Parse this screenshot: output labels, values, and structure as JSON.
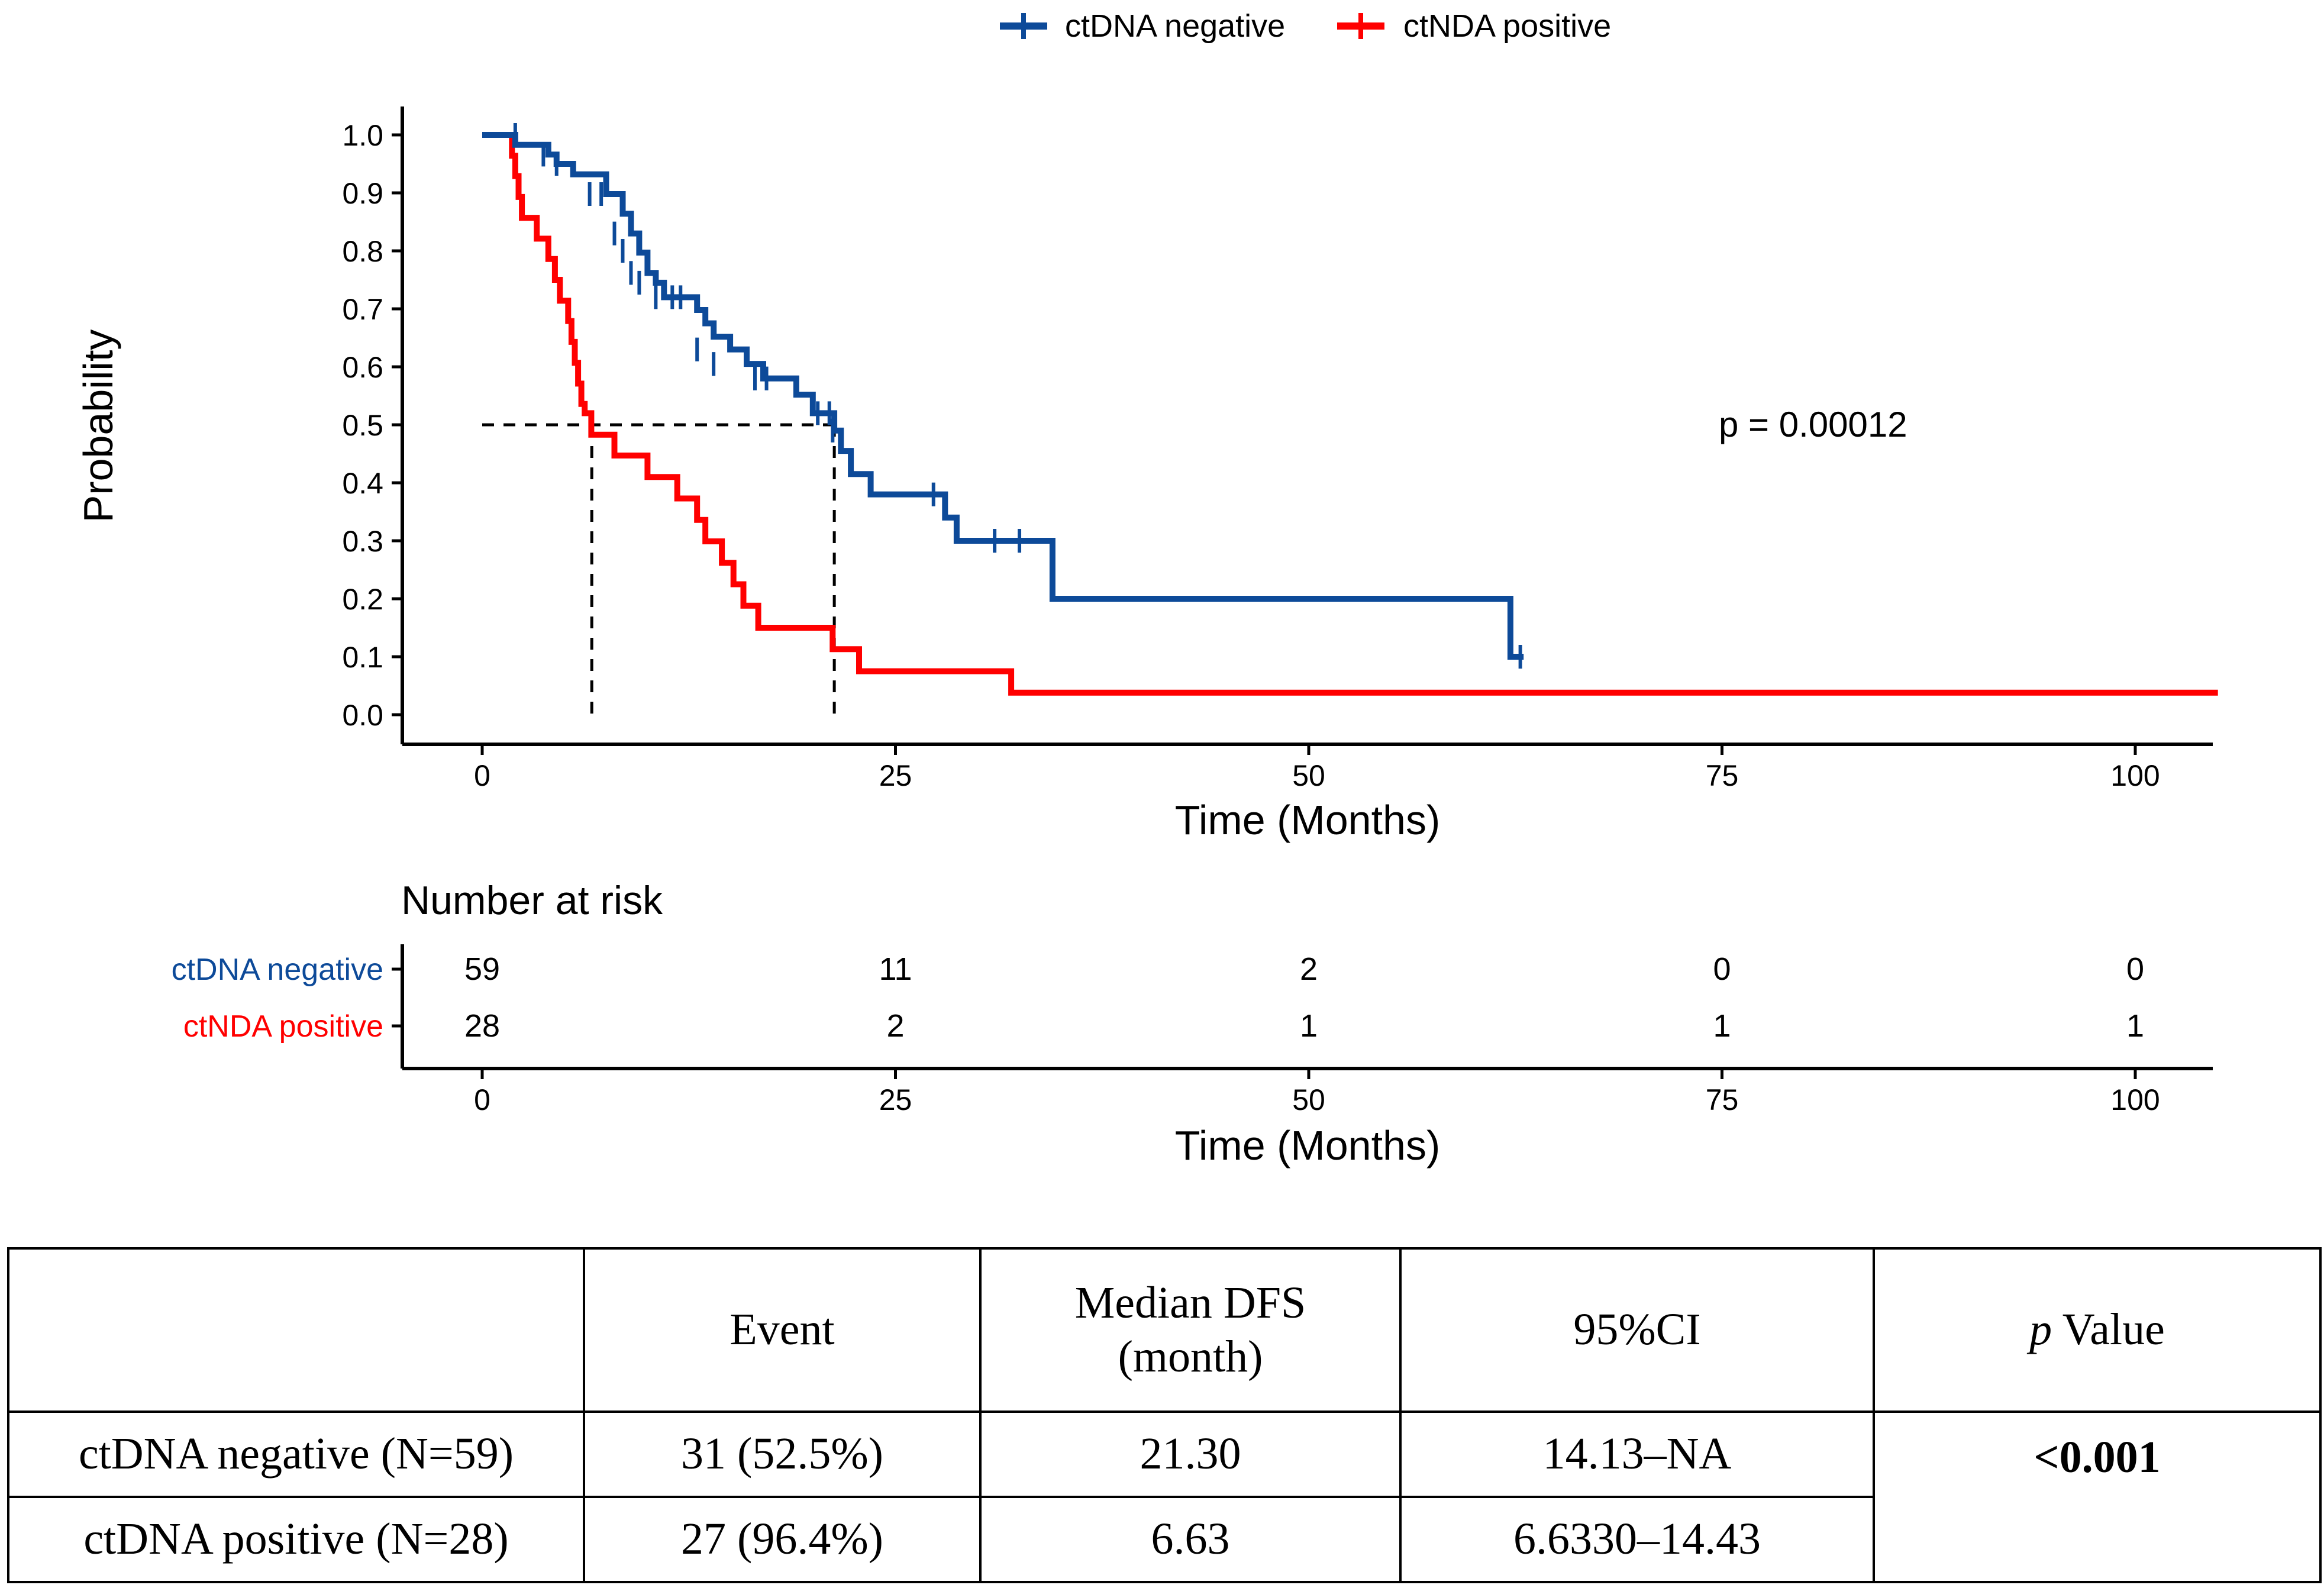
{
  "colors": {
    "negative": "#0d4a99",
    "positive": "#ff0000",
    "axis": "#000000",
    "median_line": "#000000"
  },
  "legend": {
    "items": [
      {
        "label": "ctDNA negative",
        "color": "#0d4a99"
      },
      {
        "label": "ctNDA positive",
        "color": "#ff0000"
      }
    ]
  },
  "chart_data": {
    "type": "line",
    "subtype": "kaplan-meier step",
    "xlabel": "Time (Months)",
    "ylabel": "Probability",
    "xlim": [
      -5,
      105
    ],
    "ylim": [
      0,
      1
    ],
    "xticks": [
      0,
      25,
      50,
      75,
      100
    ],
    "yticks": [
      0.0,
      0.1,
      0.2,
      0.3,
      0.4,
      0.5,
      0.6,
      0.7,
      0.8,
      0.9,
      1.0
    ],
    "xtick_labels": [
      "0",
      "25",
      "50",
      "75",
      "100"
    ],
    "ytick_labels": [
      "0.0",
      "0.1",
      "0.2",
      "0.3",
      "0.4",
      "0.5",
      "0.6",
      "0.7",
      "0.8",
      "0.9",
      "1.0"
    ],
    "annotation": "p = 0.00012",
    "medians": [
      6.63,
      21.3
    ],
    "series": [
      {
        "name": "ctDNA negative",
        "color": "#0d4a99",
        "steps": [
          [
            0,
            1.0
          ],
          [
            2,
            0.985
          ],
          [
            4,
            0.966
          ],
          [
            4.5,
            0.95
          ],
          [
            5,
            0.932
          ],
          [
            7,
            0.915
          ],
          [
            7.5,
            0.898
          ],
          [
            8.5,
            0.864
          ],
          [
            8.9,
            0.83
          ],
          [
            9.5,
            0.797
          ],
          [
            10,
            0.762
          ],
          [
            10.5,
            0.745
          ],
          [
            11,
            0.728
          ],
          [
            12,
            0.71
          ],
          [
            13,
            0.692
          ],
          [
            13.5,
            0.672
          ],
          [
            14,
            0.653
          ],
          [
            14.5,
            0.632
          ],
          [
            16,
            0.611
          ],
          [
            17,
            0.598
          ],
          [
            18,
            0.58
          ],
          [
            21,
            0.52
          ],
          [
            23,
            0.502
          ],
          [
            24,
            0.484
          ],
          [
            25,
            0.462
          ],
          [
            27,
            0.44
          ],
          [
            28,
            0.418
          ],
          [
            29.5,
            0.39
          ],
          [
            31,
            0.38
          ],
          [
            34.5,
            0.358
          ],
          [
            35,
            0.336
          ],
          [
            36,
            0.314
          ],
          [
            38,
            0.3
          ],
          [
            40,
            0.2
          ],
          [
            62,
            0.1
          ]
        ],
        "steps_drawn": [
          [
            0,
            1.0
          ],
          [
            2.0,
            1.0
          ],
          [
            2.0,
            0.983
          ],
          [
            4.0,
            0.983
          ],
          [
            4.0,
            0.966
          ],
          [
            4.5,
            0.966
          ],
          [
            4.5,
            0.95
          ],
          [
            5.5,
            0.95
          ],
          [
            5.5,
            0.932
          ],
          [
            7.5,
            0.932
          ],
          [
            7.5,
            0.898
          ],
          [
            8.5,
            0.898
          ],
          [
            8.5,
            0.864
          ],
          [
            9.0,
            0.864
          ],
          [
            9.0,
            0.83
          ],
          [
            9.5,
            0.83
          ],
          [
            9.5,
            0.797
          ],
          [
            10.0,
            0.797
          ],
          [
            10.0,
            0.762
          ],
          [
            10.5,
            0.762
          ],
          [
            10.5,
            0.745
          ],
          [
            11.0,
            0.745
          ],
          [
            11.0,
            0.72
          ],
          [
            12.0,
            0.72
          ],
          [
            13.0,
            0.72
          ],
          [
            13.0,
            0.698
          ],
          [
            13.5,
            0.698
          ],
          [
            13.5,
            0.675
          ],
          [
            14.0,
            0.675
          ],
          [
            14.0,
            0.652
          ],
          [
            15.0,
            0.652
          ],
          [
            15.0,
            0.63
          ],
          [
            16.0,
            0.63
          ],
          [
            16.0,
            0.605
          ],
          [
            17.0,
            0.605
          ],
          [
            17.0,
            0.58
          ],
          [
            19.0,
            0.58
          ],
          [
            19.0,
            0.552
          ],
          [
            20.0,
            0.552
          ],
          [
            20.0,
            0.52
          ],
          [
            21.3,
            0.52
          ],
          [
            21.3,
            0.49
          ],
          [
            21.7,
            0.49
          ],
          [
            21.7,
            0.455
          ],
          [
            22.3,
            0.455
          ],
          [
            22.3,
            0.415
          ],
          [
            23.5,
            0.415
          ],
          [
            23.5,
            0.38
          ],
          [
            28.0,
            0.38
          ],
          [
            28.0,
            0.34
          ],
          [
            28.7,
            0.34
          ],
          [
            28.7,
            0.3
          ],
          [
            34.5,
            0.3
          ],
          [
            34.5,
            0.2
          ],
          [
            62.2,
            0.2
          ],
          [
            62.2,
            0.1
          ],
          [
            63.0,
            0.1
          ]
        ],
        "censor": [
          [
            2.0,
            1.0
          ],
          [
            3.7,
            0.966
          ],
          [
            4.5,
            0.95
          ],
          [
            6.5,
            0.898
          ],
          [
            7.2,
            0.898
          ],
          [
            8.0,
            0.83
          ],
          [
            8.5,
            0.8
          ],
          [
            9.0,
            0.762
          ],
          [
            9.5,
            0.745
          ],
          [
            10.5,
            0.72
          ],
          [
            11.5,
            0.72
          ],
          [
            12.0,
            0.72
          ],
          [
            13.0,
            0.63
          ],
          [
            14.0,
            0.605
          ],
          [
            16.5,
            0.58
          ],
          [
            17.2,
            0.58
          ],
          [
            20.3,
            0.52
          ],
          [
            21.0,
            0.52
          ],
          [
            21.2,
            0.49
          ],
          [
            27.3,
            0.38
          ],
          [
            31.0,
            0.3
          ],
          [
            32.5,
            0.3
          ],
          [
            62.8,
            0.1
          ]
        ]
      },
      {
        "name": "ctNDA positive",
        "color": "#ff0000",
        "steps_drawn": [
          [
            0,
            1.0
          ],
          [
            1.8,
            1.0
          ],
          [
            1.8,
            0.964
          ],
          [
            2.0,
            0.964
          ],
          [
            2.0,
            0.929
          ],
          [
            2.2,
            0.929
          ],
          [
            2.2,
            0.893
          ],
          [
            2.4,
            0.893
          ],
          [
            2.4,
            0.857
          ],
          [
            3.3,
            0.857
          ],
          [
            3.3,
            0.821
          ],
          [
            4.0,
            0.821
          ],
          [
            4.0,
            0.786
          ],
          [
            4.4,
            0.786
          ],
          [
            4.4,
            0.75
          ],
          [
            4.7,
            0.75
          ],
          [
            4.7,
            0.714
          ],
          [
            5.2,
            0.714
          ],
          [
            5.2,
            0.679
          ],
          [
            5.4,
            0.679
          ],
          [
            5.4,
            0.643
          ],
          [
            5.6,
            0.643
          ],
          [
            5.6,
            0.607
          ],
          [
            5.8,
            0.607
          ],
          [
            5.8,
            0.571
          ],
          [
            6.0,
            0.571
          ],
          [
            6.0,
            0.536
          ],
          [
            6.2,
            0.536
          ],
          [
            6.2,
            0.52
          ],
          [
            6.6,
            0.52
          ],
          [
            6.6,
            0.483
          ],
          [
            8.0,
            0.483
          ],
          [
            8.0,
            0.447
          ],
          [
            10.0,
            0.447
          ],
          [
            10.0,
            0.41
          ],
          [
            11.8,
            0.41
          ],
          [
            11.8,
            0.373
          ],
          [
            13.0,
            0.373
          ],
          [
            13.0,
            0.336
          ],
          [
            13.5,
            0.336
          ],
          [
            13.5,
            0.299
          ],
          [
            14.5,
            0.299
          ],
          [
            14.5,
            0.262
          ],
          [
            15.2,
            0.262
          ],
          [
            15.2,
            0.225
          ],
          [
            15.8,
            0.225
          ],
          [
            15.8,
            0.188
          ],
          [
            16.7,
            0.188
          ],
          [
            16.7,
            0.15
          ],
          [
            21.2,
            0.15
          ],
          [
            21.2,
            0.113
          ],
          [
            22.8,
            0.113
          ],
          [
            22.8,
            0.075
          ],
          [
            32.0,
            0.075
          ],
          [
            32.0,
            0.038
          ],
          [
            105,
            0.038
          ]
        ],
        "censor": []
      }
    ]
  },
  "risk_table": {
    "title": "Number at risk",
    "xlabel": "Time (Months)",
    "xtick_labels": [
      "0",
      "25",
      "50",
      "75",
      "100"
    ],
    "rows": [
      {
        "label": "ctDNA negative",
        "color": "#0d4a99",
        "values": [
          "59",
          "11",
          "2",
          "0",
          "0"
        ]
      },
      {
        "label": "ctNDA positive",
        "color": "#ff0000",
        "values": [
          "28",
          "2",
          "1",
          "1",
          "1"
        ]
      }
    ]
  },
  "table": {
    "headers": [
      "",
      "Event",
      "Median DFS",
      "(month)",
      "95%CI",
      "p",
      " Value"
    ],
    "rows": [
      {
        "group": "ctDNA negative (N=59)",
        "event": "31 (52.5%)",
        "median": "21.30",
        "ci": "14.13–NA"
      },
      {
        "group": "ctDNA positive (N=28)",
        "event": "27 (96.4%)",
        "median": "6.63",
        "ci": "6.6330–14.43"
      }
    ],
    "p_value": "<0.001"
  }
}
